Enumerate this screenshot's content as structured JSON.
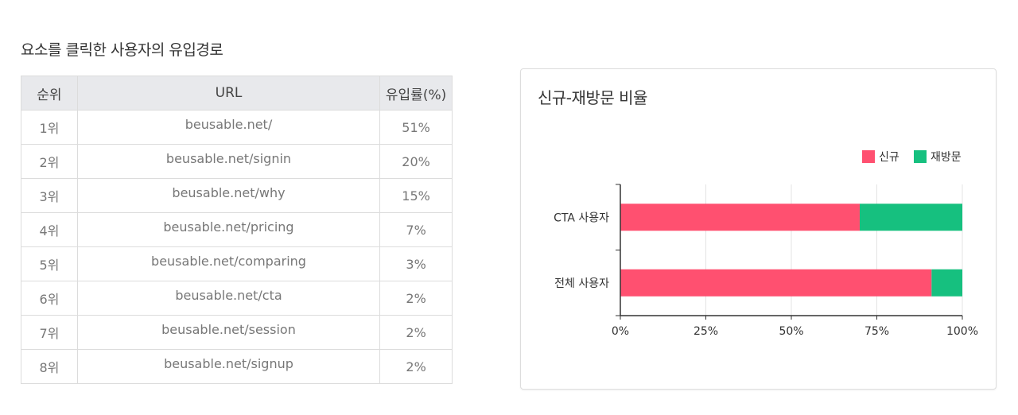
{
  "section": {
    "title": "요소를 클릭한 사용자의 유입경로"
  },
  "table": {
    "headers": {
      "rank": "순위",
      "url": "URL",
      "rate": "유입률(%)"
    },
    "rows": [
      {
        "rank": "1위",
        "url": "beusable.net/",
        "rate": "51%"
      },
      {
        "rank": "2위",
        "url": "beusable.net/signin",
        "rate": "20%"
      },
      {
        "rank": "3위",
        "url": "beusable.net/why",
        "rate": "15%"
      },
      {
        "rank": "4위",
        "url": "beusable.net/pricing",
        "rate": "7%"
      },
      {
        "rank": "5위",
        "url": "beusable.net/comparing",
        "rate": "3%"
      },
      {
        "rank": "6위",
        "url": "beusable.net/cta",
        "rate": "2%"
      },
      {
        "rank": "7위",
        "url": "beusable.net/session",
        "rate": "2%"
      },
      {
        "rank": "8위",
        "url": "beusable.net/signup",
        "rate": "2%"
      }
    ]
  },
  "chart_card": {
    "title": "신규-재방문 비율"
  },
  "chart_data": {
    "type": "bar",
    "orientation": "horizontal",
    "stacked": true,
    "title": "신규-재방문 비율",
    "categories": [
      "CTA 사용자",
      "전체 사용자"
    ],
    "series": [
      {
        "name": "신규",
        "values": [
          70,
          91
        ],
        "color": "#ff5070"
      },
      {
        "name": "재방문",
        "values": [
          30,
          9
        ],
        "color": "#16c07f"
      }
    ],
    "xlim": [
      0,
      100
    ],
    "xticks": [
      "0%",
      "25%",
      "50%",
      "75%",
      "100%"
    ],
    "grid": true,
    "legend_position": "top-right"
  }
}
